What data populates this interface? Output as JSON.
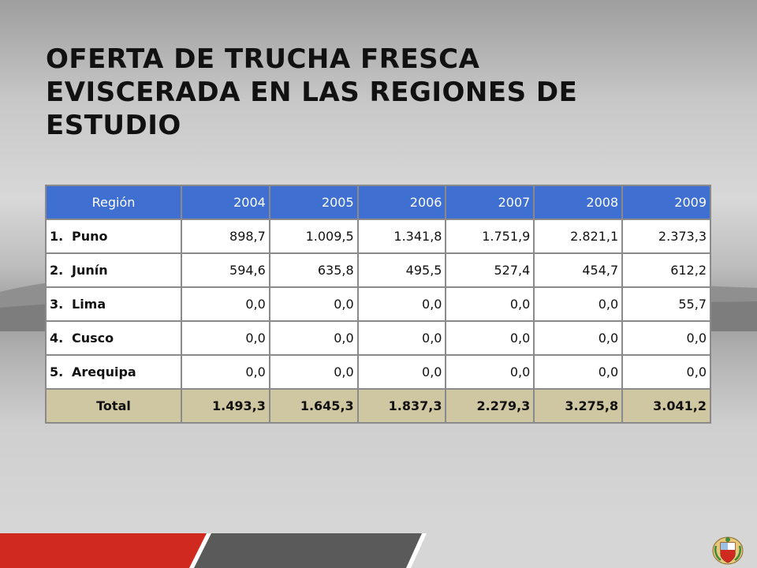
{
  "title": "OFERTA DE TRUCHA FRESCA EVISCERADA EN LAS REGIONES DE ESTUDIO",
  "table": {
    "headers": [
      "Región",
      "2004",
      "2005",
      "2006",
      "2007",
      "2008",
      "2009"
    ],
    "rows": [
      {
        "num": "1.",
        "region": "Puno",
        "values": [
          "898,7",
          "1.009,5",
          "1.341,8",
          "1.751,9",
          "2.821,1",
          "2.373,3"
        ]
      },
      {
        "num": "2.",
        "region": "Junín",
        "values": [
          "594,6",
          "635,8",
          "495,5",
          "527,4",
          "454,7",
          "612,2"
        ]
      },
      {
        "num": "3.",
        "region": "Lima",
        "values": [
          "0,0",
          "0,0",
          "0,0",
          "0,0",
          "0,0",
          "55,7"
        ]
      },
      {
        "num": "4.",
        "region": "Cusco",
        "values": [
          "0,0",
          "0,0",
          "0,0",
          "0,0",
          "0,0",
          "0,0"
        ]
      },
      {
        "num": "5.",
        "region": "Arequipa",
        "values": [
          "0,0",
          "0,0",
          "0,0",
          "0,0",
          "0,0",
          "0,0"
        ]
      }
    ],
    "total": {
      "label": "Total",
      "values": [
        "1.493,3",
        "1.645,3",
        "1.837,3",
        "2.279,3",
        "3.275,8",
        "3.041,2"
      ]
    }
  },
  "colors": {
    "header_bg": "#3f6fd1",
    "total_bg": "#cfc6a2",
    "band_red": "#d0291f",
    "band_dark": "#5a5a5a"
  },
  "icons": {
    "emblem": "peru-coat-of-arms-icon"
  }
}
